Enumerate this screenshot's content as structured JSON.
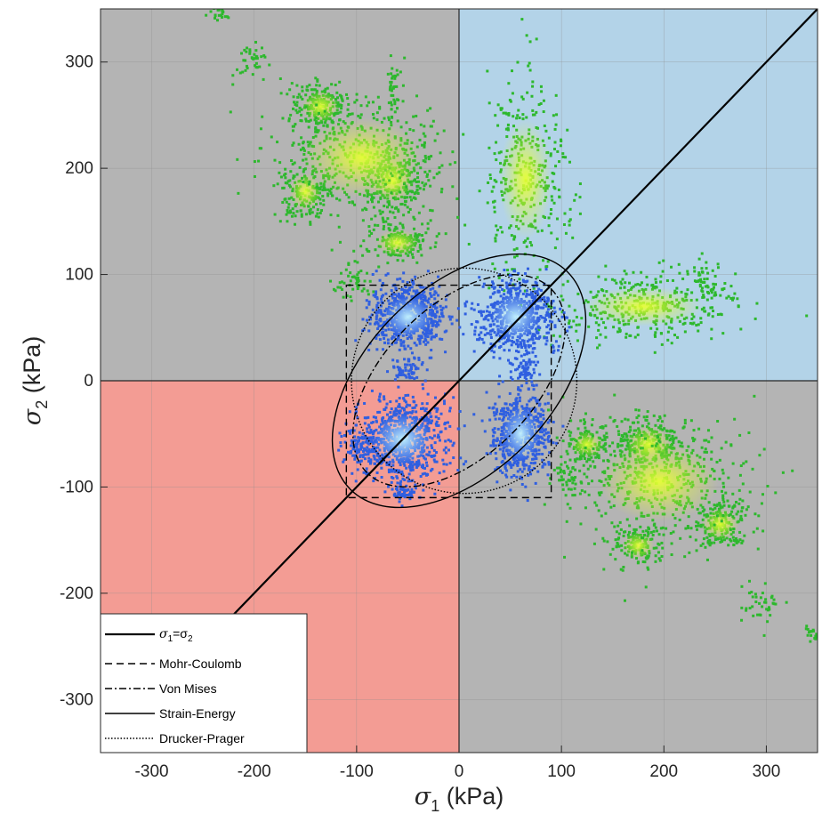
{
  "chart_data": {
    "type": "scatter",
    "title": "",
    "xlabel": {
      "symbol": "σ",
      "sub": "1",
      "unit": " (kPa)"
    },
    "ylabel": {
      "symbol": "σ",
      "sub": "2",
      "unit": " (kPa)"
    },
    "xlim": [
      -350,
      350
    ],
    "ylim": [
      -350,
      350
    ],
    "xticks": [
      -300,
      -200,
      -100,
      0,
      100,
      200,
      300
    ],
    "yticks": [
      -300,
      -200,
      -100,
      0,
      100,
      200,
      300
    ],
    "grid": true,
    "legend_position": "bottom-left",
    "quadrant_colors": {
      "tension_tension": "#b3d3e8",
      "compression_compression": "#f39c94",
      "mixed": "#b4b4b4"
    },
    "legend": [
      {
        "key": "identity",
        "label_main": "σ",
        "label_sub": "1",
        "label_rest": "=σ",
        "label_sub2": "2",
        "dash": ""
      },
      {
        "key": "mohr",
        "label": "Mohr-Coulomb",
        "dash": "8 5"
      },
      {
        "key": "vonmises",
        "label": "Von Mises",
        "dash": "8 3 2 3"
      },
      {
        "key": "strain",
        "label": "Strain-Energy",
        "dash": ""
      },
      {
        "key": "drucker",
        "label": "Drucker-Prager",
        "dash": "1.5 2"
      }
    ],
    "failure_envelopes": {
      "mohr_coulomb_square": {
        "min": -110,
        "max": 90
      },
      "von_mises_ellipse": {
        "cx": 0,
        "cy": 0,
        "semi_major_along_identity": 127,
        "semi_minor": 73
      },
      "strain_energy_ellipse": {
        "cx": 0,
        "cy": 0,
        "semi_major_along_identity": 150,
        "semi_minor": 90
      },
      "drucker_prager_circle": {
        "cx": 5,
        "cy": 0,
        "r": 110
      }
    },
    "series": [
      {
        "name": "",
        "color": "#2db82d",
        "highlight": "#e6ff33",
        "clusters": [
          {
            "cx": -135,
            "cy": 258,
            "sx": 14,
            "sy": 12,
            "n": 220
          },
          {
            "cx": -65,
            "cy": 188,
            "sx": 16,
            "sy": 16,
            "n": 260
          },
          {
            "cx": -150,
            "cy": 178,
            "sx": 12,
            "sy": 14,
            "n": 160
          },
          {
            "cx": -60,
            "cy": 130,
            "sx": 16,
            "sy": 10,
            "n": 160
          },
          {
            "cx": -95,
            "cy": 210,
            "sx": 45,
            "sy": 30,
            "n": 420
          },
          {
            "cx": -105,
            "cy": 95,
            "sx": 10,
            "sy": 8,
            "n": 50
          },
          {
            "cx": -65,
            "cy": 275,
            "sx": 3,
            "sy": 14,
            "n": 40
          },
          {
            "cx": -200,
            "cy": 305,
            "sx": 10,
            "sy": 10,
            "n": 40
          },
          {
            "cx": 65,
            "cy": 190,
            "sx": 20,
            "sy": 45,
            "n": 360
          },
          {
            "cx": 180,
            "cy": 70,
            "sx": 45,
            "sy": 15,
            "n": 380
          },
          {
            "cx": 240,
            "cy": 90,
            "sx": 6,
            "sy": 14,
            "n": 50
          },
          {
            "cx": 185,
            "cy": -60,
            "sx": 18,
            "sy": 14,
            "n": 260
          },
          {
            "cx": 125,
            "cy": -60,
            "sx": 12,
            "sy": 10,
            "n": 140
          },
          {
            "cx": 175,
            "cy": -155,
            "sx": 12,
            "sy": 10,
            "n": 140
          },
          {
            "cx": 255,
            "cy": -135,
            "sx": 14,
            "sy": 12,
            "n": 180
          },
          {
            "cx": 195,
            "cy": -95,
            "sx": 45,
            "sy": 30,
            "n": 460
          },
          {
            "cx": 295,
            "cy": -210,
            "sx": 12,
            "sy": 10,
            "n": 40
          },
          {
            "cx": 345,
            "cy": -235,
            "sx": 4,
            "sy": 5,
            "n": 20
          },
          {
            "cx": -235,
            "cy": 345,
            "sx": 5,
            "sy": 4,
            "n": 20
          },
          {
            "cx": 105,
            "cy": -90,
            "sx": 6,
            "sy": 6,
            "n": 40
          }
        ]
      },
      {
        "name": "",
        "color": "#2f5fe0",
        "highlight": "#c6f6ff",
        "clusters": [
          {
            "cx": -50,
            "cy": 60,
            "sx": 18,
            "sy": 15,
            "n": 700
          },
          {
            "cx": 55,
            "cy": 60,
            "sx": 18,
            "sy": 18,
            "n": 700
          },
          {
            "cx": -55,
            "cy": -55,
            "sx": 22,
            "sy": 19,
            "n": 820
          },
          {
            "cx": 60,
            "cy": -50,
            "sx": 14,
            "sy": 20,
            "n": 620
          },
          {
            "cx": -50,
            "cy": 10,
            "sx": 8,
            "sy": 6,
            "n": 60
          },
          {
            "cx": 65,
            "cy": 10,
            "sx": 6,
            "sy": 5,
            "n": 50
          },
          {
            "cx": -100,
            "cy": -60,
            "sx": 8,
            "sy": 6,
            "n": 60
          },
          {
            "cx": -55,
            "cy": -105,
            "sx": 6,
            "sy": 4,
            "n": 50
          }
        ]
      }
    ]
  }
}
